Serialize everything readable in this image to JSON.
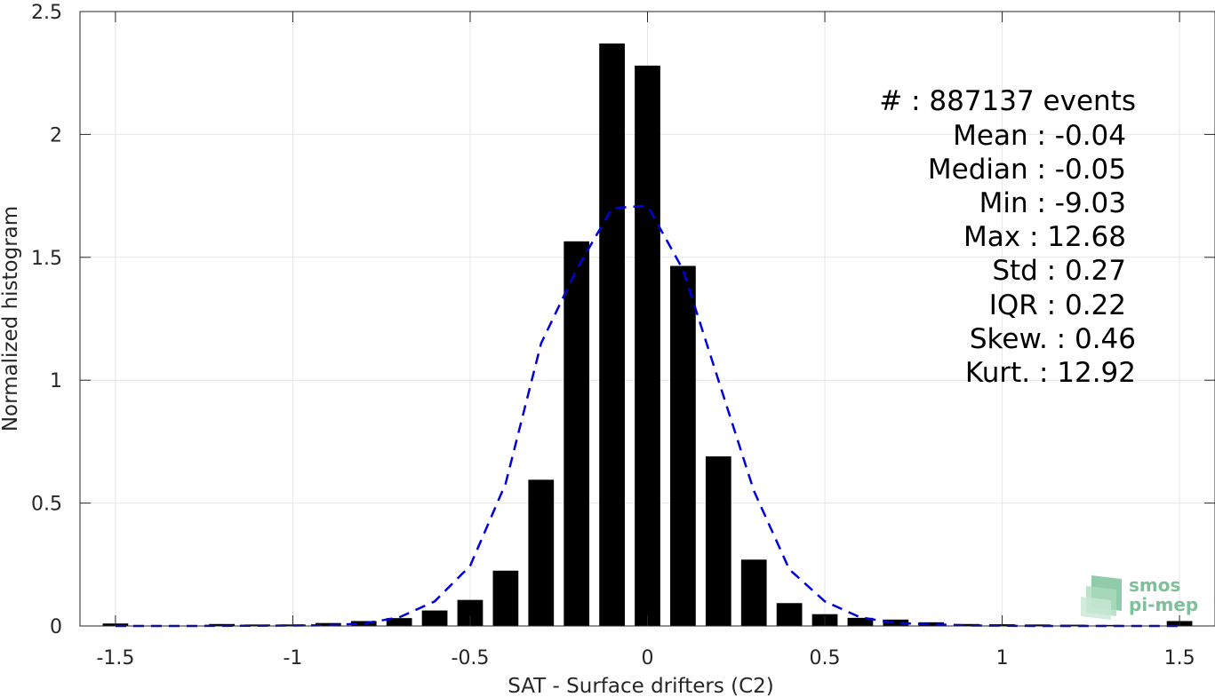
{
  "chart_data": {
    "type": "bar",
    "xlabel": "SAT - Surface drifters (C2)",
    "ylabel": "Normalized histogram",
    "xlim": [
      -1.6,
      1.6
    ],
    "ylim": [
      0,
      2.5
    ],
    "xticks": [
      -1.5,
      -1,
      -0.5,
      0,
      0.5,
      1,
      1.5
    ],
    "xtick_labels": [
      "-1.5",
      "-1",
      "-0.5",
      "0",
      "0.5",
      "1",
      "1.5"
    ],
    "yticks": [
      0,
      0.5,
      1,
      1.5,
      2,
      2.5
    ],
    "ytick_labels": [
      "0",
      "0.5",
      "1",
      "1.5",
      "2",
      "2.5"
    ],
    "grid": true,
    "series": [
      {
        "kind": "bar",
        "color": "#000000",
        "x": [
          -1.5,
          -1.2,
          -1.1,
          -1.0,
          -0.9,
          -0.8,
          -0.7,
          -0.6,
          -0.5,
          -0.4,
          -0.3,
          -0.2,
          -0.1,
          0.0,
          0.1,
          0.2,
          0.3,
          0.4,
          0.5,
          0.6,
          0.7,
          0.8,
          0.9,
          1.0,
          1.1,
          1.2,
          1.3,
          1.5
        ],
        "values": [
          0.01,
          0.008,
          0.006,
          0.006,
          0.012,
          0.02,
          0.032,
          0.063,
          0.106,
          0.225,
          0.595,
          1.565,
          2.37,
          2.28,
          1.465,
          0.69,
          0.27,
          0.093,
          0.048,
          0.033,
          0.026,
          0.015,
          0.008,
          0.007,
          0.006,
          0.005,
          0.004,
          0.02
        ]
      },
      {
        "kind": "line",
        "style": "dashed",
        "color": "#0000dd",
        "x": [
          -1.5,
          -1.3,
          -1.1,
          -0.9,
          -0.8,
          -0.7,
          -0.6,
          -0.5,
          -0.4,
          -0.3,
          -0.2,
          -0.1,
          0.0,
          0.1,
          0.2,
          0.3,
          0.4,
          0.5,
          0.6,
          0.7,
          0.9,
          1.1,
          1.3,
          1.5
        ],
        "values": [
          0.0,
          0.0,
          0.001,
          0.003,
          0.01,
          0.035,
          0.1,
          0.245,
          0.58,
          1.15,
          1.45,
          1.7,
          1.71,
          1.45,
          1.0,
          0.55,
          0.23,
          0.1,
          0.035,
          0.012,
          0.002,
          0.0,
          0.0,
          0.0
        ]
      }
    ],
    "stats": {
      "lines": [
        "#  : 887137 events",
        "Mean : -0.04",
        "Median : -0.05",
        "Min : -9.03",
        "Max : 12.68",
        "Std : 0.27",
        "IQR : 0.22",
        "Skew. : 0.46",
        "Kurt. : 12.92"
      ]
    }
  },
  "logo": {
    "line1": "smos",
    "line2": "pi-mep",
    "color": "#7fbf9a"
  }
}
